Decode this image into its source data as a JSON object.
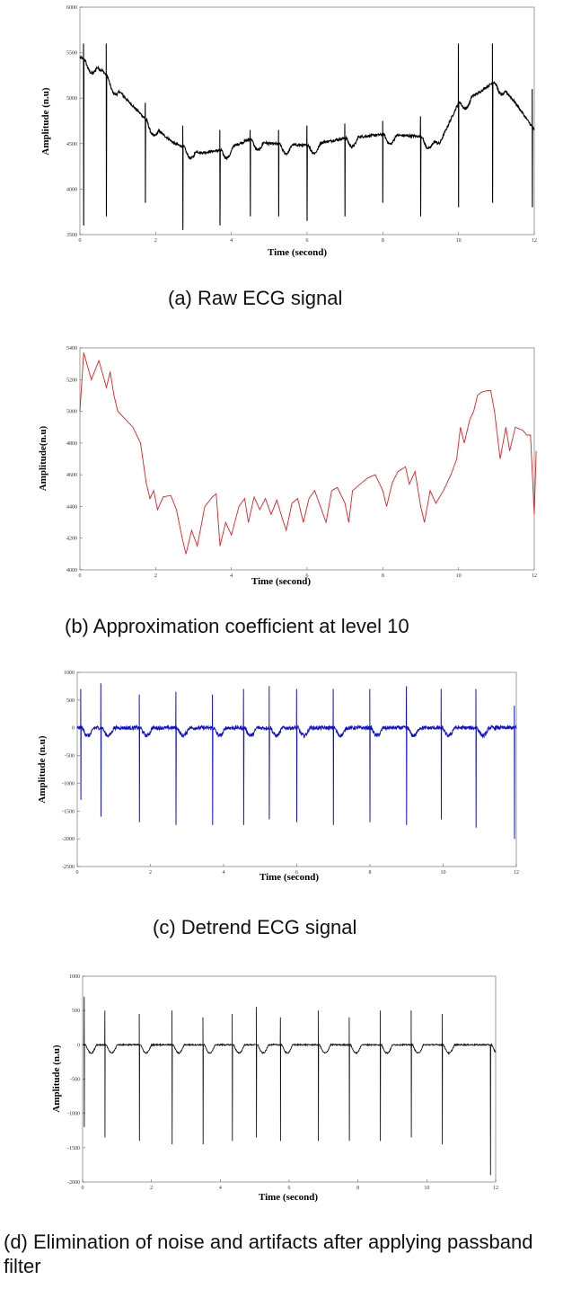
{
  "chart_data": [
    {
      "type": "line",
      "caption": "(a) Raw ECG signal",
      "xlabel": "Time (second)",
      "ylabel": "Amplitude (n.u)",
      "xlim": [
        0,
        12
      ],
      "ylim": [
        3500,
        6000
      ],
      "xticks": [
        "0",
        "2",
        "4",
        "6",
        "8",
        "10",
        "12"
      ],
      "yticks": [
        "3500",
        "4000",
        "4500",
        "5000",
        "5500",
        "6000"
      ],
      "color": "#000000",
      "baseline": [
        [
          0,
          5450
        ],
        [
          0.6,
          5300
        ],
        [
          1.2,
          5000
        ],
        [
          1.9,
          4700
        ],
        [
          2.5,
          4500
        ],
        [
          3.2,
          4400
        ],
        [
          3.8,
          4430
        ],
        [
          4.5,
          4550
        ],
        [
          5.0,
          4500
        ],
        [
          6.0,
          4480
        ],
        [
          7.0,
          4560
        ],
        [
          8.0,
          4600
        ],
        [
          9.0,
          4580
        ],
        [
          9.5,
          4500
        ],
        [
          10.0,
          4950
        ],
        [
          10.5,
          5050
        ],
        [
          11.0,
          5200
        ],
        [
          11.5,
          4950
        ],
        [
          12.0,
          4650
        ]
      ],
      "r_peaks": [
        [
          0.1,
          5600,
          3600
        ],
        [
          0.7,
          5600,
          3700
        ],
        [
          1.73,
          4950,
          3850
        ],
        [
          2.72,
          4700,
          3550
        ],
        [
          3.7,
          4650,
          3600
        ],
        [
          4.5,
          4650,
          3700
        ],
        [
          5.25,
          4650,
          3700
        ],
        [
          6.0,
          4700,
          3650
        ],
        [
          7.0,
          4720,
          3700
        ],
        [
          8.0,
          4750,
          3850
        ],
        [
          9.0,
          4800,
          3700
        ],
        [
          10.0,
          5600,
          3800
        ],
        [
          10.9,
          5600,
          3850
        ],
        [
          11.95,
          5100,
          3800
        ]
      ]
    },
    {
      "type": "line",
      "caption": "(b) Approximation coefficient at level 10",
      "xlabel": "Time (second)",
      "ylabel": "Amplitude(n.u)",
      "xlim": [
        0,
        12
      ],
      "ylim": [
        4000,
        5400
      ],
      "xticks": [
        "0",
        "2",
        "4",
        "6",
        "8",
        "10",
        "12"
      ],
      "yticks": [
        "4000",
        "4200",
        "4400",
        "4600",
        "4800",
        "5000",
        "5200",
        "5400"
      ],
      "color": "#e02020",
      "points": [
        [
          0,
          5000
        ],
        [
          0.1,
          5370
        ],
        [
          0.3,
          5200
        ],
        [
          0.5,
          5320
        ],
        [
          0.7,
          5150
        ],
        [
          0.8,
          5250
        ],
        [
          0.9,
          5100
        ],
        [
          1.0,
          5000
        ],
        [
          1.2,
          4950
        ],
        [
          1.4,
          4900
        ],
        [
          1.6,
          4800
        ],
        [
          1.75,
          4550
        ],
        [
          1.85,
          4450
        ],
        [
          1.95,
          4500
        ],
        [
          2.05,
          4380
        ],
        [
          2.2,
          4460
        ],
        [
          2.4,
          4470
        ],
        [
          2.55,
          4380
        ],
        [
          2.7,
          4200
        ],
        [
          2.8,
          4100
        ],
        [
          2.95,
          4250
        ],
        [
          3.1,
          4150
        ],
        [
          3.3,
          4400
        ],
        [
          3.5,
          4460
        ],
        [
          3.6,
          4480
        ],
        [
          3.7,
          4150
        ],
        [
          3.85,
          4300
        ],
        [
          4.0,
          4220
        ],
        [
          4.2,
          4400
        ],
        [
          4.35,
          4450
        ],
        [
          4.45,
          4300
        ],
        [
          4.6,
          4460
        ],
        [
          4.75,
          4380
        ],
        [
          4.9,
          4450
        ],
        [
          5.05,
          4350
        ],
        [
          5.2,
          4440
        ],
        [
          5.35,
          4320
        ],
        [
          5.45,
          4250
        ],
        [
          5.6,
          4420
        ],
        [
          5.75,
          4450
        ],
        [
          5.9,
          4300
        ],
        [
          6.05,
          4450
        ],
        [
          6.2,
          4500
        ],
        [
          6.35,
          4400
        ],
        [
          6.5,
          4300
        ],
        [
          6.65,
          4500
        ],
        [
          6.8,
          4520
        ],
        [
          7.0,
          4420
        ],
        [
          7.1,
          4300
        ],
        [
          7.2,
          4500
        ],
        [
          7.4,
          4540
        ],
        [
          7.6,
          4580
        ],
        [
          7.8,
          4600
        ],
        [
          8.0,
          4500
        ],
        [
          8.1,
          4400
        ],
        [
          8.25,
          4550
        ],
        [
          8.4,
          4620
        ],
        [
          8.6,
          4650
        ],
        [
          8.7,
          4540
        ],
        [
          8.85,
          4620
        ],
        [
          9.0,
          4400
        ],
        [
          9.1,
          4300
        ],
        [
          9.25,
          4500
        ],
        [
          9.4,
          4420
        ],
        [
          9.6,
          4500
        ],
        [
          9.8,
          4600
        ],
        [
          9.95,
          4700
        ],
        [
          10.05,
          4900
        ],
        [
          10.15,
          4800
        ],
        [
          10.3,
          4950
        ],
        [
          10.4,
          5000
        ],
        [
          10.5,
          5100
        ],
        [
          10.6,
          5120
        ],
        [
          10.75,
          5130
        ],
        [
          10.85,
          5130
        ],
        [
          10.95,
          5000
        ],
        [
          11.1,
          4700
        ],
        [
          11.25,
          4900
        ],
        [
          11.35,
          4750
        ],
        [
          11.5,
          4900
        ],
        [
          11.7,
          4880
        ],
        [
          11.8,
          4850
        ],
        [
          11.9,
          4850
        ],
        [
          12.0,
          4350
        ],
        [
          12.05,
          4750
        ]
      ]
    },
    {
      "type": "line",
      "caption": "(c) Detrend ECG signal",
      "xlabel": "Time (second)",
      "ylabel": "Amplitude (n.u)",
      "xlim": [
        0,
        12
      ],
      "ylim": [
        -2500,
        1000
      ],
      "xticks": [
        "0",
        "2",
        "4",
        "6",
        "8",
        "10",
        "12"
      ],
      "yticks": [
        "-2500",
        "-2000",
        "-1500",
        "-1000",
        "-500",
        "0",
        "500",
        "1000"
      ],
      "color": "#1010d0",
      "r_peaks": [
        [
          0.1,
          700,
          -1300
        ],
        [
          0.65,
          800,
          -1600
        ],
        [
          1.7,
          600,
          -1700
        ],
        [
          2.7,
          650,
          -1750
        ],
        [
          3.7,
          600,
          -1750
        ],
        [
          4.55,
          700,
          -1750
        ],
        [
          5.25,
          750,
          -1650
        ],
        [
          6.0,
          700,
          -1700
        ],
        [
          7.0,
          700,
          -1750
        ],
        [
          8.0,
          700,
          -1700
        ],
        [
          9.0,
          750,
          -1750
        ],
        [
          9.95,
          700,
          -1650
        ],
        [
          10.9,
          700,
          -1800
        ],
        [
          11.95,
          400,
          -2000
        ]
      ]
    },
    {
      "type": "line",
      "caption": "(d) Elimination of noise and artifacts after applying passband filter",
      "xlabel": "Time (second)",
      "ylabel": "Amplitude (n.u)",
      "xlim": [
        0,
        12
      ],
      "ylim": [
        -2000,
        1000
      ],
      "xticks": [
        "0",
        "2",
        "4",
        "6",
        "8",
        "10",
        "12"
      ],
      "yticks": [
        "-2000",
        "-1500",
        "-1000",
        "-500",
        "0",
        "500",
        "1000"
      ],
      "color": "#111111",
      "r_peaks": [
        [
          0.05,
          700,
          -1200
        ],
        [
          0.65,
          500,
          -1350
        ],
        [
          1.65,
          450,
          -1400
        ],
        [
          2.6,
          500,
          -1450
        ],
        [
          3.5,
          400,
          -1450
        ],
        [
          4.35,
          450,
          -1400
        ],
        [
          5.05,
          550,
          -1350
        ],
        [
          5.75,
          400,
          -1400
        ],
        [
          6.85,
          500,
          -1400
        ],
        [
          7.75,
          400,
          -1400
        ],
        [
          8.65,
          500,
          -1400
        ],
        [
          9.55,
          500,
          -1350
        ],
        [
          10.45,
          450,
          -1450
        ],
        [
          11.85,
          -200,
          -1900
        ]
      ]
    }
  ]
}
